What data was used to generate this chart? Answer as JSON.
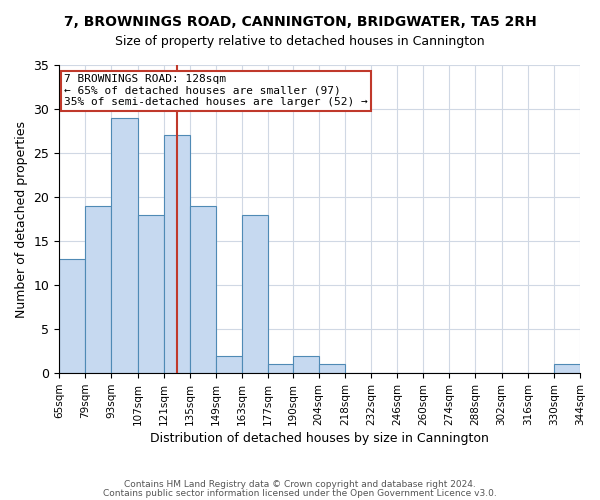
{
  "title": "7, BROWNINGS ROAD, CANNINGTON, BRIDGWATER, TA5 2RH",
  "subtitle": "Size of property relative to detached houses in Cannington",
  "xlabel": "Distribution of detached houses by size in Cannington",
  "ylabel": "Number of detached properties",
  "bin_edges": [
    65,
    79,
    93,
    107,
    121,
    135,
    149,
    163,
    177,
    190,
    204,
    218,
    232,
    246,
    260,
    274,
    288,
    302,
    316,
    330,
    344
  ],
  "bar_heights": [
    13,
    19,
    29,
    18,
    27,
    19,
    2,
    18,
    1,
    2,
    1,
    0,
    0,
    0,
    0,
    0,
    0,
    0,
    0,
    1
  ],
  "tick_labels": [
    "65sqm",
    "79sqm",
    "93sqm",
    "107sqm",
    "121sqm",
    "135sqm",
    "149sqm",
    "163sqm",
    "177sqm",
    "190sqm",
    "204sqm",
    "218sqm",
    "232sqm",
    "246sqm",
    "260sqm",
    "274sqm",
    "288sqm",
    "302sqm",
    "316sqm",
    "330sqm",
    "344sqm"
  ],
  "bar_color": "#c6d9f0",
  "bar_edgecolor": "#4f8ab5",
  "vline_x": 128,
  "vline_color": "#c0392b",
  "annotation_text": "7 BROWNINGS ROAD: 128sqm\n← 65% of detached houses are smaller (97)\n35% of semi-detached houses are larger (52) →",
  "annotation_box_edgecolor": "#c0392b",
  "ylim": [
    0,
    35
  ],
  "yticks": [
    0,
    5,
    10,
    15,
    20,
    25,
    30,
    35
  ],
  "background_color": "#ffffff",
  "grid_color": "#d0d8e4",
  "footnote1": "Contains HM Land Registry data © Crown copyright and database right 2024.",
  "footnote2": "Contains public sector information licensed under the Open Government Licence v3.0."
}
